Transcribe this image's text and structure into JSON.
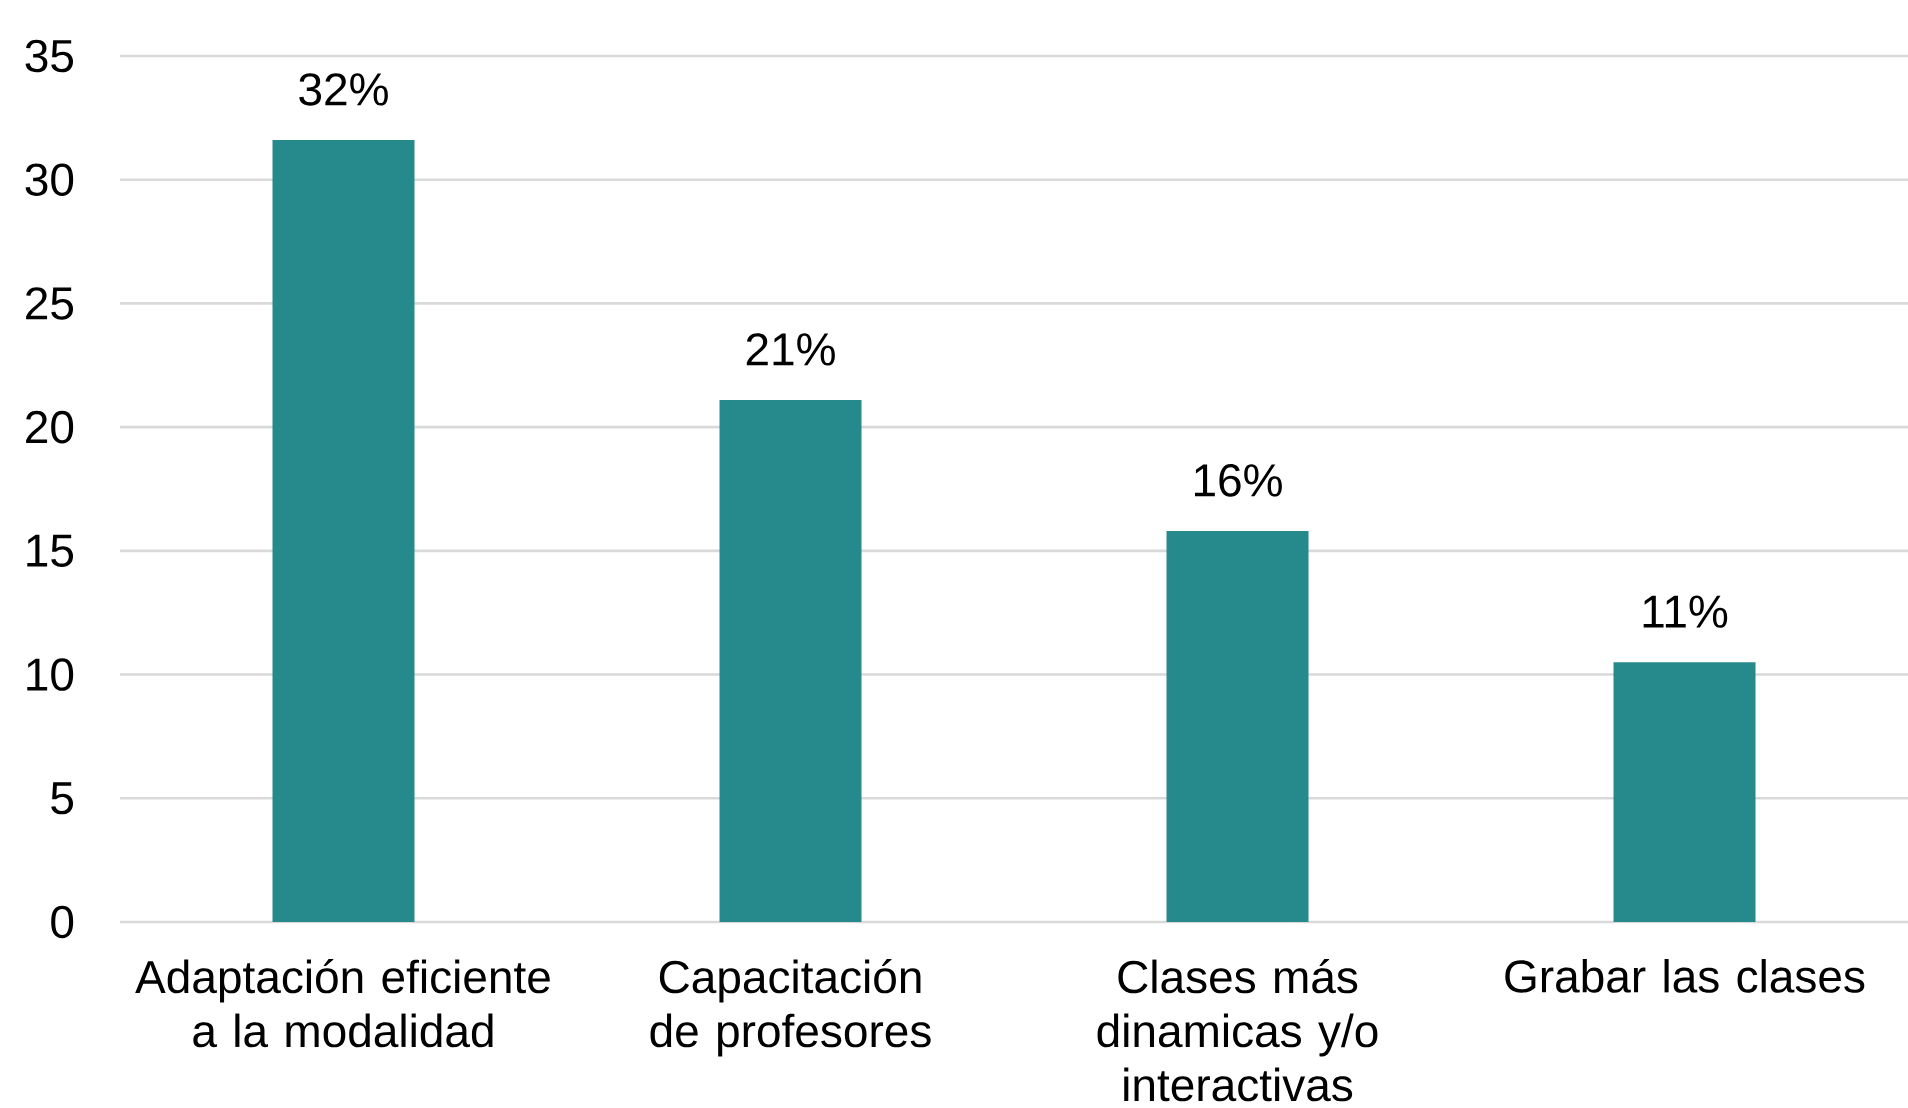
{
  "chart_data": {
    "type": "bar",
    "categories": [
      "Adaptación eficiente a la modalidad",
      "Capacitación de profesores",
      "Clases más dinamicas y/o interactivas",
      "Grabar las clases"
    ],
    "values": [
      31.6,
      21.1,
      15.8,
      10.5
    ],
    "value_labels": [
      "32%",
      "21%",
      "16%",
      "11%"
    ],
    "color": "#268a8c",
    "ylim": [
      0,
      35
    ],
    "yticks": [
      0,
      5,
      10,
      15,
      20,
      25,
      30,
      35
    ],
    "grid": "y"
  }
}
